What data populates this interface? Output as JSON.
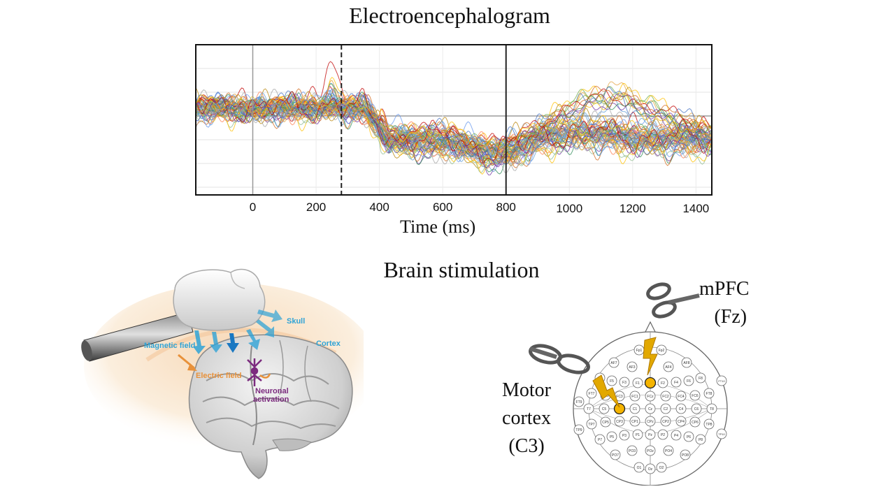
{
  "titles": {
    "eeg": "Electroencephalogram",
    "stim": "Brain stimulation"
  },
  "chart_data": {
    "type": "line",
    "title": "Electroencephalogram",
    "xlabel": "Time (ms)",
    "ylabel": "",
    "xlim": [
      -180,
      1450
    ],
    "x_ticks": [
      0,
      200,
      400,
      600,
      800,
      1000,
      1200,
      1400
    ],
    "grid": true,
    "markers": [
      {
        "x": 0,
        "style": "solid-gray"
      },
      {
        "x": 280,
        "style": "dashed-black"
      },
      {
        "x": 800,
        "style": "solid-black"
      }
    ],
    "series_count": 64,
    "series_note_colors": [
      "#e6a23c",
      "#5b9bd5",
      "#70ad47",
      "#c00000",
      "#7030a0",
      "#ffc000",
      "#4472c4",
      "#a5a5a5",
      "#2e8b57",
      "#d2691e",
      "#8fbc8f",
      "#ff7f50",
      "#6495ed",
      "#b8860b"
    ]
  },
  "tms": {
    "skull": "Skull",
    "cortex": "Cortex",
    "magnetic_field": "Magnetic field",
    "electric_field": "Electric field",
    "neuronal_line1": "Neuronal",
    "neuronal_line2": "activation",
    "colors": {
      "blue": "#2fa3d6",
      "orange": "#e8913a",
      "purple": "#7b2a7e"
    }
  },
  "cap": {
    "mpfc_line1": "mPFC",
    "mpfc_line2": "(Fz)",
    "motor_line1": "Motor",
    "motor_line2": "cortex",
    "motor_line3": "(C3)",
    "highlight_color": "#f5b400",
    "electrodes": [
      {
        "n": "Fp1"
      },
      {
        "n": "Fp2"
      },
      {
        "n": "AF7"
      },
      {
        "n": "AF3"
      },
      {
        "n": "AF4"
      },
      {
        "n": "AF8"
      },
      {
        "n": "F7"
      },
      {
        "n": "F5"
      },
      {
        "n": "F3"
      },
      {
        "n": "F1"
      },
      {
        "n": "Fz"
      },
      {
        "n": "F2"
      },
      {
        "n": "F4"
      },
      {
        "n": "F6"
      },
      {
        "n": "F8"
      },
      {
        "n": "FT7"
      },
      {
        "n": "FC5"
      },
      {
        "n": "FC3"
      },
      {
        "n": "FC1"
      },
      {
        "n": "FCz"
      },
      {
        "n": "FC2"
      },
      {
        "n": "FC4"
      },
      {
        "n": "FC6"
      },
      {
        "n": "FT8"
      },
      {
        "n": "T7"
      },
      {
        "n": "C5"
      },
      {
        "n": "C3"
      },
      {
        "n": "C1"
      },
      {
        "n": "Cz"
      },
      {
        "n": "C2"
      },
      {
        "n": "C4"
      },
      {
        "n": "C6"
      },
      {
        "n": "T8"
      },
      {
        "n": "TP7"
      },
      {
        "n": "CP5"
      },
      {
        "n": "CP3"
      },
      {
        "n": "CP1"
      },
      {
        "n": "CPz"
      },
      {
        "n": "CP2"
      },
      {
        "n": "CP4"
      },
      {
        "n": "CP6"
      },
      {
        "n": "TP8"
      },
      {
        "n": "P7"
      },
      {
        "n": "P5"
      },
      {
        "n": "P3"
      },
      {
        "n": "P1"
      },
      {
        "n": "Pz"
      },
      {
        "n": "P2"
      },
      {
        "n": "P4"
      },
      {
        "n": "P6"
      },
      {
        "n": "P8"
      },
      {
        "n": "PO7"
      },
      {
        "n": "PO3"
      },
      {
        "n": "POz"
      },
      {
        "n": "PO4"
      },
      {
        "n": "PO8"
      },
      {
        "n": "O1"
      },
      {
        "n": "Oz"
      },
      {
        "n": "O2"
      },
      {
        "n": "FT9"
      },
      {
        "n": "FT10"
      },
      {
        "n": "TP9"
      },
      {
        "n": "TP10"
      }
    ]
  }
}
